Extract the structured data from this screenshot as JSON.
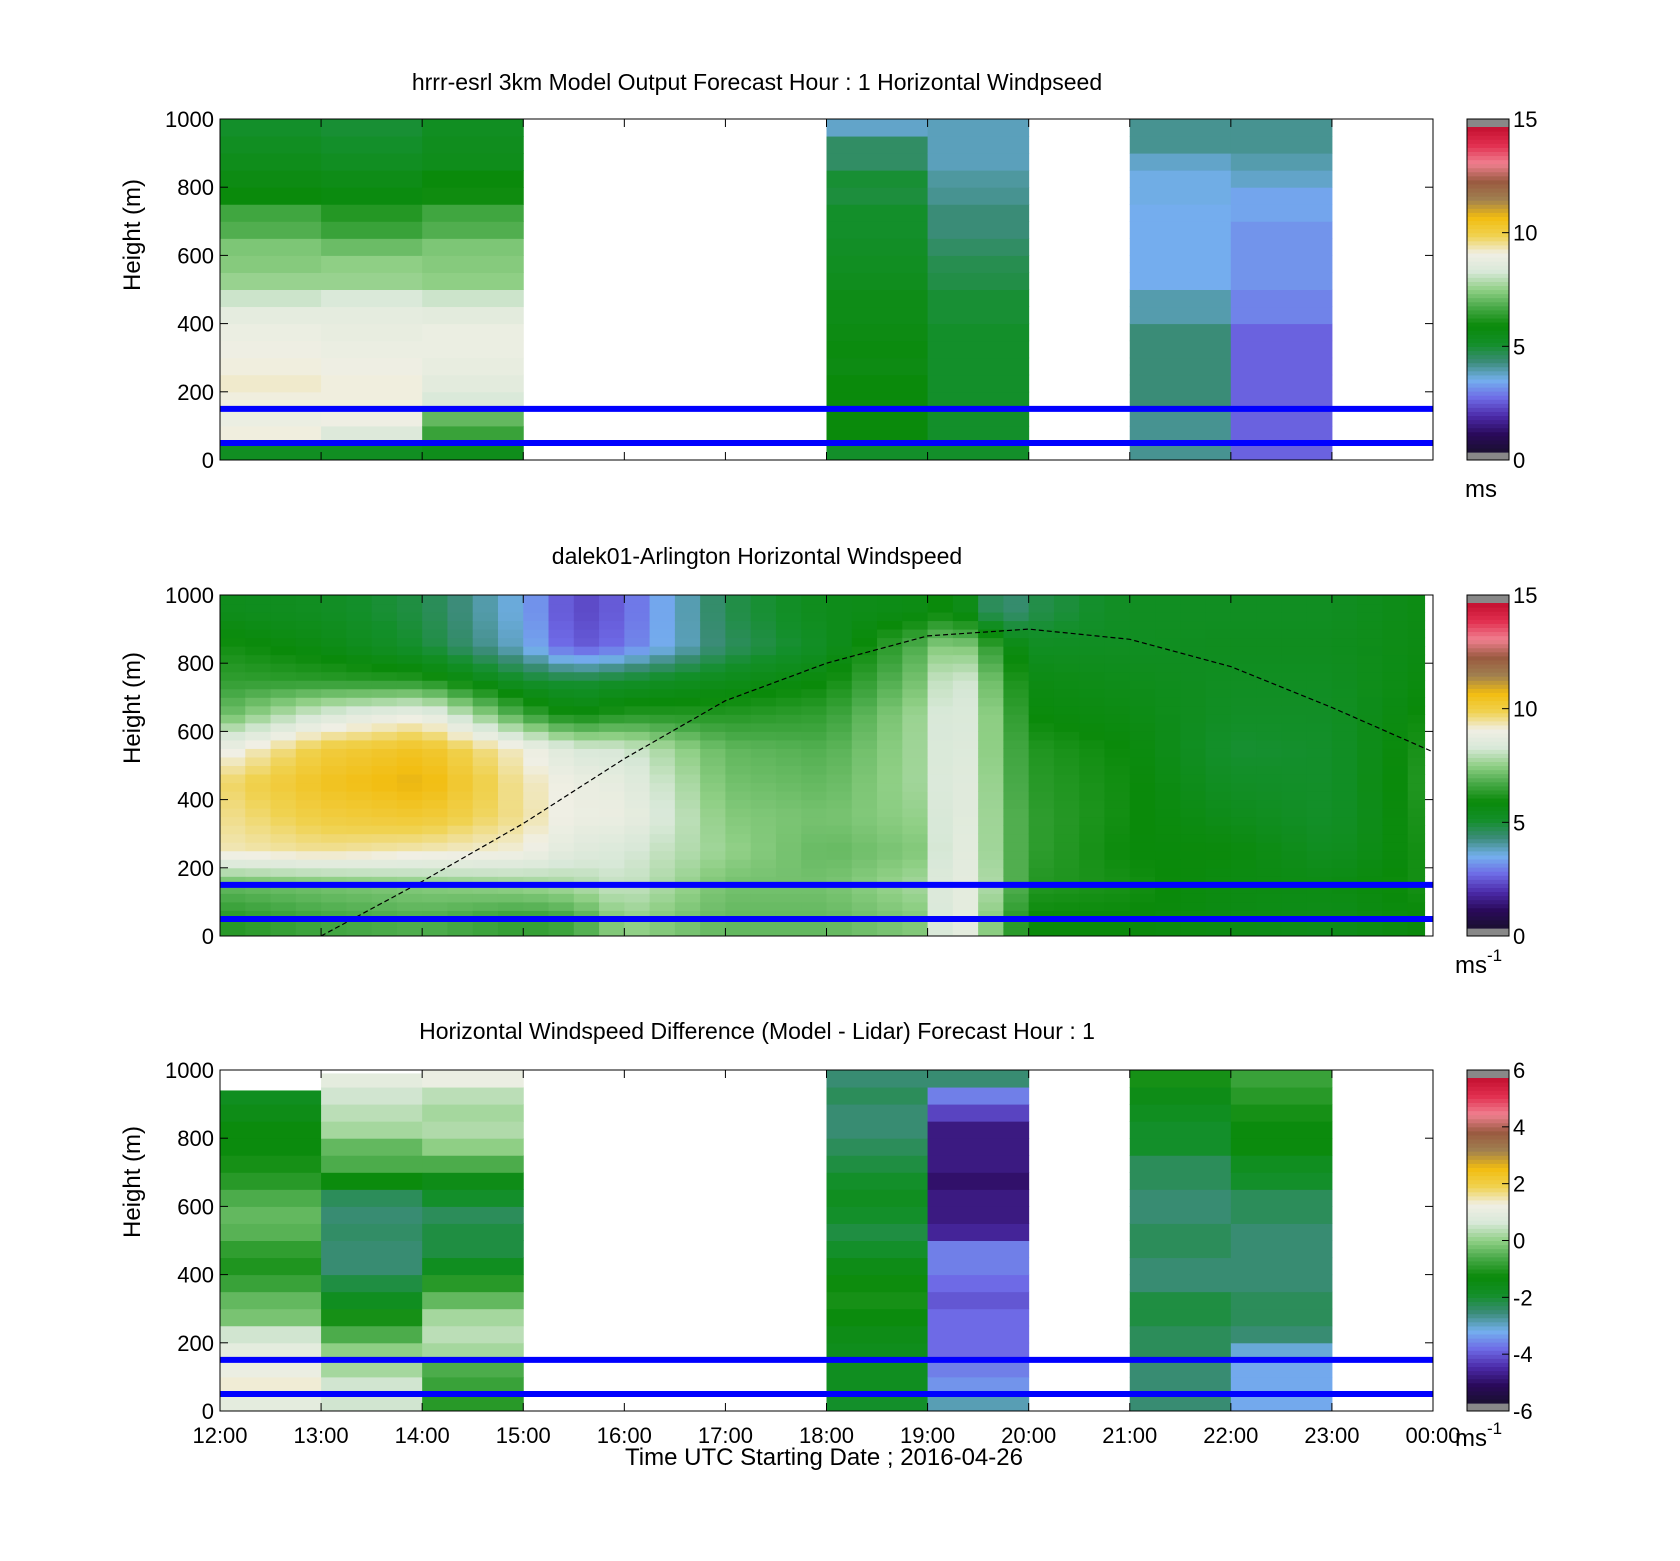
{
  "colors": {
    "background": "#ffffff",
    "reference_lines": "#0000ff",
    "model_missing": "#ffffff",
    "colormap": [
      "#1a1030",
      "#2a0a5a",
      "#4b2aa8",
      "#6e6ae6",
      "#74b0ee",
      "#3c8c7a",
      "#138f2a",
      "#0a8a0a",
      "#45a845",
      "#8fcf85",
      "#d8e8d8",
      "#f0efe4",
      "#f0d250",
      "#f2bd10",
      "#a08050",
      "#9a5a40",
      "#f08090",
      "#e23050",
      "#c41030"
    ]
  },
  "chart_data": [
    {
      "type": "heatmap",
      "title": "hrrr-esrl 3km Model Output   Forecast Hour : 1 Horizontal Windpseed",
      "xlabel": "",
      "ylabel": "Height (m)",
      "xlim": [
        "12:00",
        "00:00"
      ],
      "ylim": [
        0,
        1000
      ],
      "yticks": [
        0,
        200,
        400,
        600,
        800,
        1000
      ],
      "x_tick_times": [
        "12:00",
        "13:00",
        "14:00",
        "15:00",
        "16:00",
        "17:00",
        "18:00",
        "19:00",
        "20:00",
        "21:00",
        "22:00",
        "23:00",
        "00:00"
      ],
      "x_tick_labels_shown": false,
      "colorbar": {
        "range": [
          0,
          15
        ],
        "ticks": [
          "0",
          "5",
          "10",
          "15"
        ],
        "unit": "ms"
      },
      "reference_heights": [
        150,
        50
      ],
      "data_top_height": 1000,
      "hours": [
        "12:00",
        "13:00",
        "14:00",
        "18:00",
        "19:00",
        "21:00",
        "22:00"
      ],
      "heights": [
        25,
        75,
        125,
        175,
        225,
        275,
        325,
        375,
        425,
        475,
        525,
        575,
        625,
        675,
        725,
        775,
        825,
        875,
        925,
        975
      ],
      "values": [
        [
          5.2,
          9.2,
          9.0,
          9.2,
          9.3,
          9.2,
          9.1,
          9.0,
          8.8,
          8.2,
          7.6,
          7.4,
          7.3,
          6.8,
          6.6,
          5.8,
          5.6,
          5.4,
          5.2,
          5.0
        ],
        [
          5.2,
          8.5,
          9.1,
          9.2,
          9.2,
          9.1,
          9.0,
          8.9,
          8.8,
          8.4,
          7.6,
          7.5,
          7.1,
          6.5,
          6.2,
          5.7,
          5.5,
          5.2,
          5.0,
          4.9
        ],
        [
          5.4,
          6.5,
          7.0,
          8.4,
          8.7,
          8.9,
          9.0,
          9.0,
          8.7,
          8.2,
          7.5,
          7.4,
          7.3,
          6.8,
          6.6,
          5.9,
          5.8,
          5.4,
          5.3,
          5.2
        ],
        [
          5.0,
          5.8,
          5.8,
          5.8,
          5.8,
          5.6,
          5.7,
          5.6,
          5.5,
          5.5,
          5.3,
          5.2,
          5.1,
          5.0,
          5.0,
          4.8,
          4.9,
          4.4,
          4.4,
          3.6
        ],
        [
          5.0,
          5.0,
          5.0,
          5.0,
          5.0,
          5.0,
          5.0,
          5.0,
          4.9,
          4.9,
          4.7,
          4.6,
          4.4,
          4.2,
          4.2,
          4.0,
          3.9,
          3.7,
          3.7,
          3.7
        ],
        [
          4.0,
          4.0,
          4.0,
          4.2,
          4.2,
          4.2,
          4.2,
          4.2,
          3.8,
          3.8,
          3.3,
          3.3,
          3.3,
          3.3,
          3.3,
          3.4,
          3.4,
          3.6,
          4.0,
          4.0
        ],
        [
          2.4,
          2.4,
          2.4,
          2.4,
          2.4,
          2.4,
          2.4,
          2.4,
          2.8,
          2.8,
          3.0,
          3.0,
          3.0,
          3.0,
          3.2,
          3.2,
          3.6,
          3.8,
          4.0,
          4.0
        ]
      ]
    },
    {
      "type": "heatmap",
      "title": "dalek01-Arlington  Horizontal Windspeed",
      "xlabel": "",
      "ylabel": "Height (m)",
      "xlim": [
        "12:00",
        "00:00"
      ],
      "ylim": [
        0,
        1000
      ],
      "yticks": [
        0,
        200,
        400,
        600,
        800,
        1000
      ],
      "x_tick_labels_shown": false,
      "colorbar": {
        "range": [
          0,
          15
        ],
        "ticks": [
          "0",
          "5",
          "10",
          "15"
        ],
        "unit": "ms",
        "unit_exponent": "-1"
      },
      "reference_heights": [
        150,
        50
      ],
      "data_end_time": "23:55",
      "column_interval_minutes": 15,
      "profile_keys": {
        "times": [
          "12:00",
          "13:00",
          "14:00",
          "15:00",
          "15:30",
          "16:00",
          "17:00",
          "18:00",
          "19:00",
          "19:15",
          "19:45",
          "20:00",
          "21:00",
          "22:00",
          "23:00",
          "23:55"
        ],
        "heights": [
          50,
          150,
          250,
          350,
          450,
          550,
          650,
          750,
          850,
          950
        ],
        "values": [
          [
            6.2,
            7.0,
            9.4,
            9.6,
            9.8,
            8.9,
            7.0,
            6.4,
            6.0,
            5.4
          ],
          [
            6.6,
            7.2,
            9.6,
            10.2,
            10.6,
            10.2,
            8.4,
            6.3,
            5.6,
            5.2
          ],
          [
            6.8,
            7.4,
            9.4,
            10.4,
            11.0,
            10.6,
            9.0,
            6.2,
            4.9,
            4.7
          ],
          [
            6.4,
            7.6,
            9.2,
            9.6,
            9.5,
            9.2,
            6.6,
            5.0,
            3.5,
            3.3
          ],
          [
            6.6,
            7.8,
            8.6,
            9.0,
            9.0,
            8.4,
            5.8,
            4.8,
            2.2,
            2.0
          ],
          [
            7.6,
            8.2,
            8.4,
            9.0,
            8.8,
            8.3,
            6.2,
            5.0,
            2.6,
            2.4
          ],
          [
            7.0,
            7.2,
            7.6,
            7.4,
            7.2,
            7.0,
            6.2,
            5.4,
            4.4,
            4.6
          ],
          [
            7.0,
            7.2,
            7.0,
            7.2,
            7.0,
            6.8,
            6.4,
            5.8,
            5.2,
            5.4
          ],
          [
            7.4,
            7.8,
            7.4,
            7.6,
            7.8,
            7.8,
            7.8,
            7.4,
            7.0,
            5.6
          ],
          [
            9.4,
            9.2,
            9.2,
            9.1,
            9.1,
            9.0,
            8.9,
            8.8,
            7.8,
            6.0
          ],
          [
            6.8,
            7.4,
            7.2,
            7.2,
            7.1,
            7.0,
            7.0,
            6.6,
            6.0,
            4.0
          ],
          [
            5.8,
            6.2,
            6.4,
            6.4,
            6.3,
            6.2,
            5.8,
            5.6,
            5.2,
            4.6
          ],
          [
            5.8,
            6.0,
            5.8,
            5.9,
            5.9,
            5.8,
            5.6,
            5.4,
            5.2,
            5.2
          ],
          [
            5.6,
            5.6,
            5.8,
            5.4,
            5.1,
            4.9,
            5.1,
            5.2,
            5.3,
            5.2
          ],
          [
            5.4,
            5.6,
            5.2,
            5.0,
            5.0,
            5.0,
            5.1,
            5.2,
            5.3,
            5.2
          ],
          [
            5.8,
            6.0,
            6.0,
            6.1,
            6.2,
            6.1,
            5.9,
            5.7,
            5.6,
            5.6
          ]
        ]
      },
      "dashed_curve": {
        "times": [
          "13:00",
          "14:00",
          "15:00",
          "16:00",
          "17:00",
          "18:00",
          "19:00",
          "20:00",
          "21:00",
          "22:00",
          "23:00",
          "00:00"
        ],
        "heights": [
          0,
          160,
          330,
          520,
          690,
          800,
          880,
          900,
          870,
          790,
          670,
          540
        ]
      }
    },
    {
      "type": "heatmap",
      "title": "Horizontal Windspeed Difference (Model - Lidar) Forecast Hour : 1",
      "xlabel": "Time UTC  Starting Date ; 2016-04-26",
      "ylabel": "Height (m)",
      "xlim": [
        "12:00",
        "00:00"
      ],
      "ylim": [
        0,
        1000
      ],
      "yticks": [
        0,
        200,
        400,
        600,
        800,
        1000
      ],
      "x_tick_labels": [
        "12:00",
        "13:00",
        "14:00",
        "15:00",
        "16:00",
        "17:00",
        "18:00",
        "19:00",
        "20:00",
        "21:00",
        "22:00",
        "23:00",
        "00:00"
      ],
      "colorbar": {
        "range": [
          -6,
          6
        ],
        "ticks": [
          "-6",
          "-4",
          "-2",
          "0",
          "2",
          "4",
          "6"
        ],
        "unit": "ms",
        "unit_exponent": "-1"
      },
      "reference_heights": [
        150,
        50
      ],
      "hours": [
        "12:00",
        "13:00",
        "14:00",
        "18:00",
        "19:00",
        "21:00",
        "22:00"
      ],
      "column_tops": [
        940,
        990,
        1000,
        1000,
        1000,
        1000,
        1000
      ],
      "heights": [
        25,
        75,
        125,
        175,
        225,
        275,
        325,
        375,
        425,
        475,
        525,
        575,
        625,
        675,
        725,
        775,
        825,
        875,
        925,
        975
      ],
      "values": [
        [
          1.0,
          1.4,
          1.2,
          1.0,
          0.6,
          -0.2,
          -0.4,
          -0.8,
          -1.1,
          -0.9,
          -0.5,
          -0.4,
          -0.6,
          -1.0,
          -1.2,
          -1.4,
          -1.4,
          -1.6,
          -1.8,
          -1.0
        ],
        [
          0.6,
          0.6,
          0.2,
          0.0,
          -0.6,
          -1.2,
          -1.8,
          -2.2,
          -2.6,
          -2.6,
          -2.5,
          -2.6,
          -2.4,
          -1.4,
          -0.6,
          -0.4,
          0.2,
          0.4,
          0.6,
          1.0
        ],
        [
          -1.0,
          -0.8,
          -0.6,
          0.2,
          0.4,
          0.2,
          -0.4,
          -1.0,
          -1.8,
          -2.2,
          -2.2,
          -2.4,
          -2.0,
          -1.6,
          -0.6,
          0.0,
          0.3,
          0.2,
          0.4,
          1.2
        ],
        [
          -2.0,
          -1.8,
          -1.8,
          -1.7,
          -1.6,
          -1.4,
          -1.2,
          -1.3,
          -1.6,
          -2.0,
          -2.2,
          -2.0,
          -1.8,
          -2.0,
          -2.2,
          -2.4,
          -2.6,
          -2.6,
          -2.4,
          -2.6
        ],
        [
          -3.0,
          -3.6,
          -3.8,
          -4.0,
          -4.0,
          -4.0,
          -4.2,
          -4.0,
          -3.8,
          -3.8,
          -4.8,
          -5.0,
          -5.0,
          -5.2,
          -5.0,
          -5.0,
          -5.0,
          -4.4,
          -3.8,
          -2.6
        ],
        [
          -2.6,
          -2.6,
          -2.6,
          -2.4,
          -2.4,
          -2.2,
          -2.2,
          -2.6,
          -2.6,
          -2.4,
          -2.4,
          -2.6,
          -2.6,
          -2.4,
          -2.4,
          -2.0,
          -2.0,
          -1.8,
          -1.6,
          -1.2
        ],
        [
          -3.4,
          -3.4,
          -3.4,
          -3.2,
          -2.6,
          -2.4,
          -2.4,
          -2.6,
          -2.6,
          -2.6,
          -2.6,
          -2.4,
          -2.4,
          -2.0,
          -1.8,
          -1.4,
          -1.4,
          -1.2,
          -1.0,
          -0.8
        ]
      ]
    }
  ]
}
